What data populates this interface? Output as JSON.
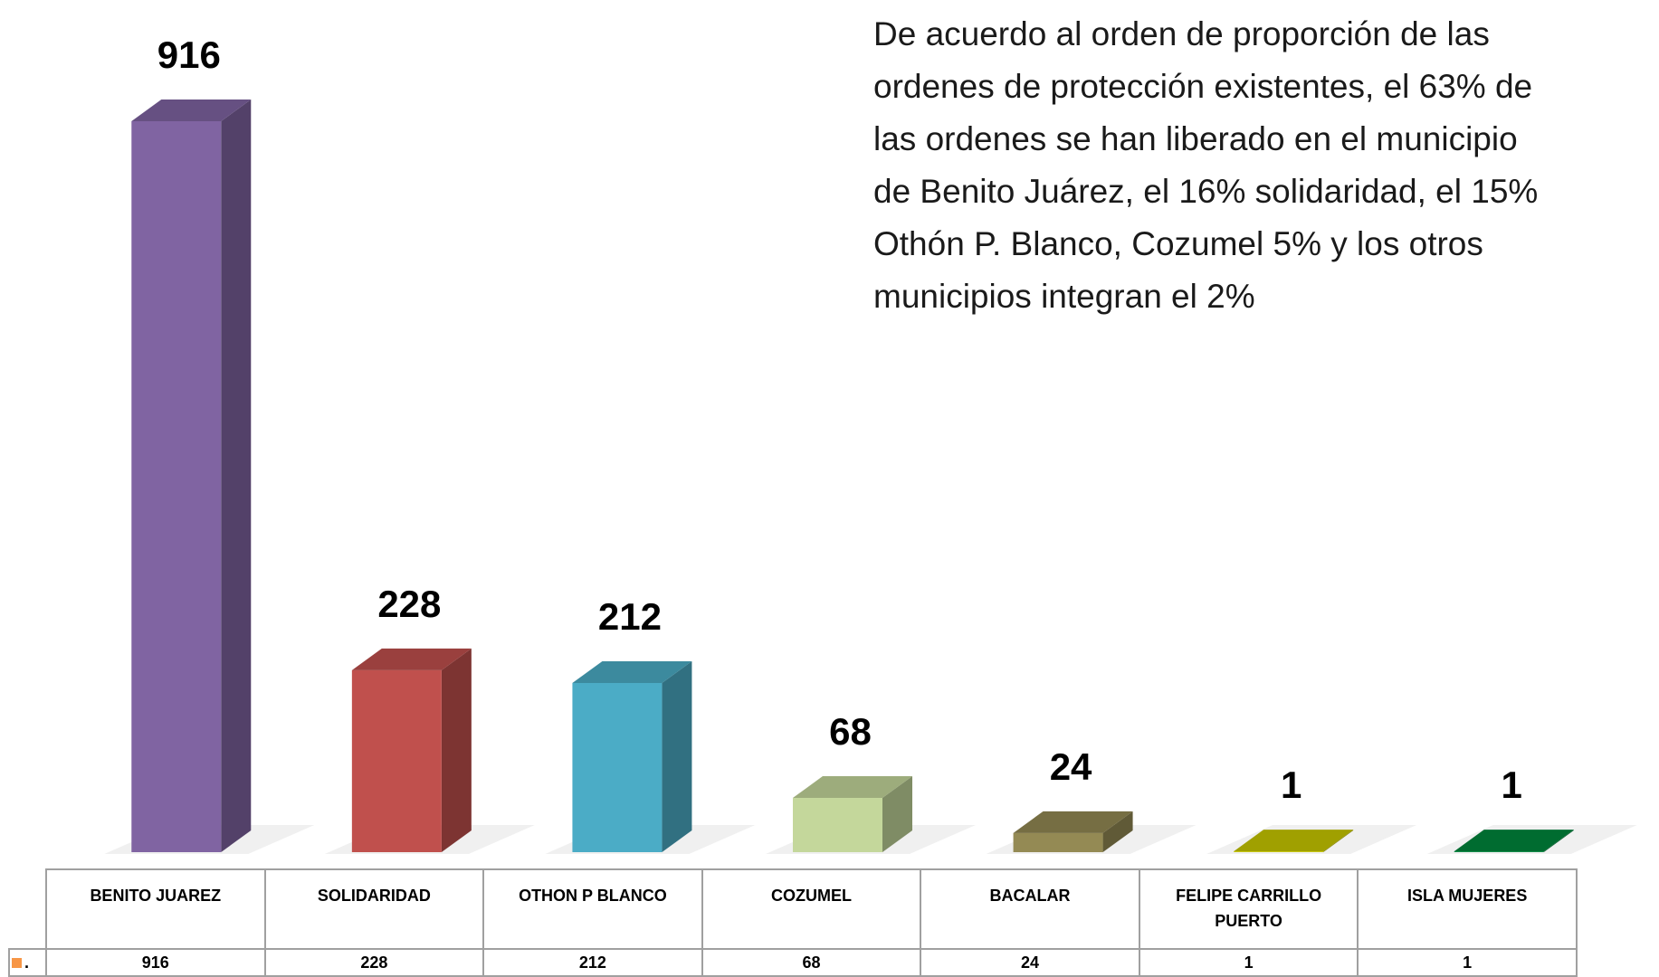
{
  "chart_data": {
    "type": "bar3d",
    "annotation": [
      "De acuerdo al orden de proporción de las",
      "ordenes de protección existentes, el 63% de",
      "las ordenes se han liberado en el municipio",
      "de Benito Juárez, el 16% solidaridad, el 15%",
      "Othón P. Blanco, Cozumel 5% y los otros",
      "municipios integran el 2%"
    ],
    "categories": [
      "BENITO JUAREZ",
      "SOLIDARIDAD",
      "OTHON P BLANCO",
      "COZUMEL",
      "BACALAR",
      "FELIPE CARRILLO PUERTO",
      "ISLA MUJERES"
    ],
    "series": [
      {
        "name": ".",
        "color": "#f79646",
        "values": [
          916,
          228,
          212,
          68,
          24,
          1,
          1
        ]
      }
    ],
    "bar_colors": [
      "#8064a2",
      "#c0504d",
      "#4bacc6",
      "#c4d79b",
      "#948a54",
      "#c8c800",
      "#00873c"
    ],
    "data_table": true
  }
}
